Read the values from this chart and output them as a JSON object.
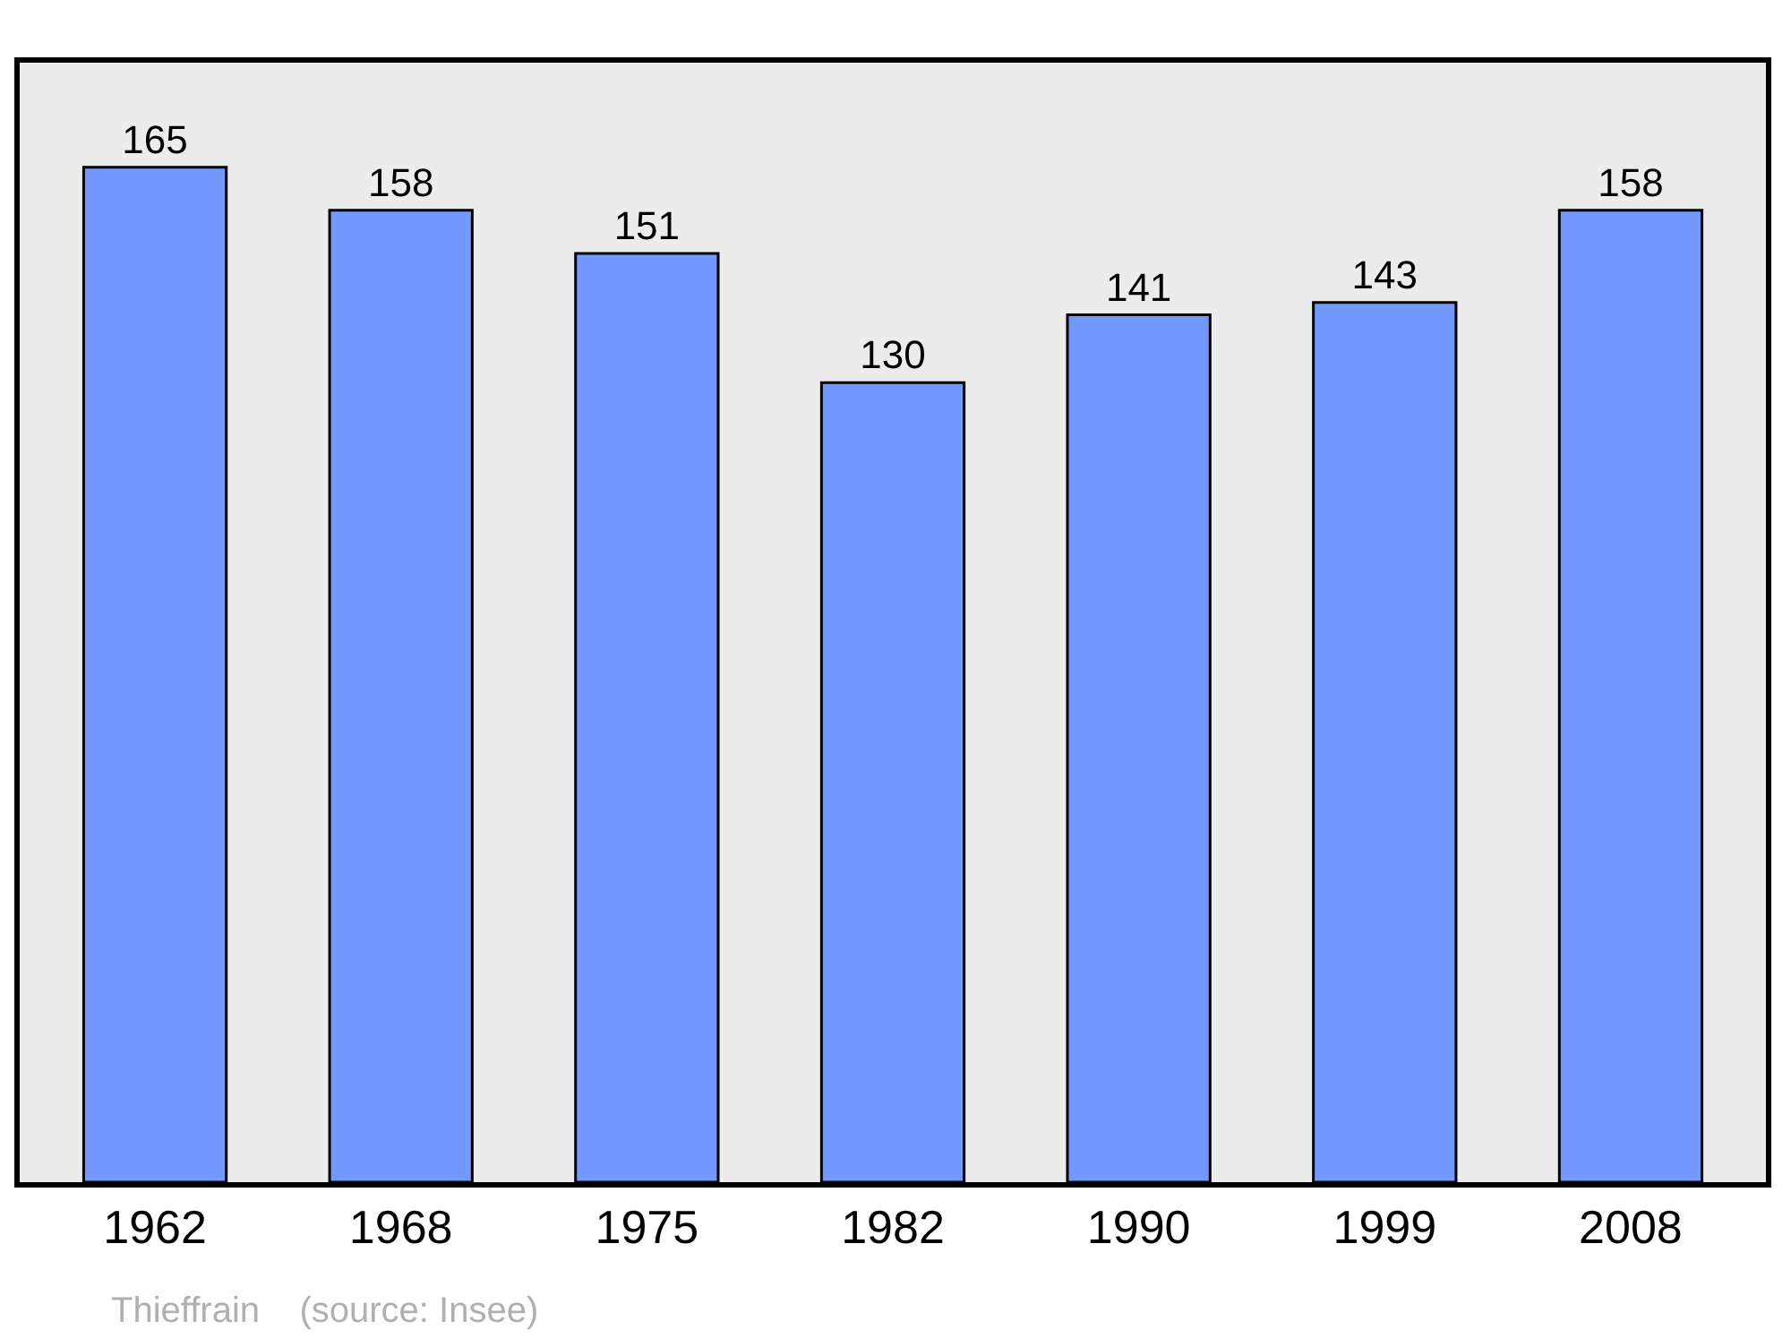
{
  "chart_data": {
    "type": "bar",
    "categories": [
      "1962",
      "1968",
      "1975",
      "1982",
      "1990",
      "1999",
      "2008"
    ],
    "values": [
      165,
      158,
      151,
      130,
      141,
      143,
      158
    ],
    "color": "#7399ff",
    "data_labels": true,
    "ylim": [
      0,
      182
    ],
    "tick_labels": "x",
    "grid": false,
    "legend": false,
    "annotations": [
      "Thieffrain    (source: Insee)"
    ]
  }
}
